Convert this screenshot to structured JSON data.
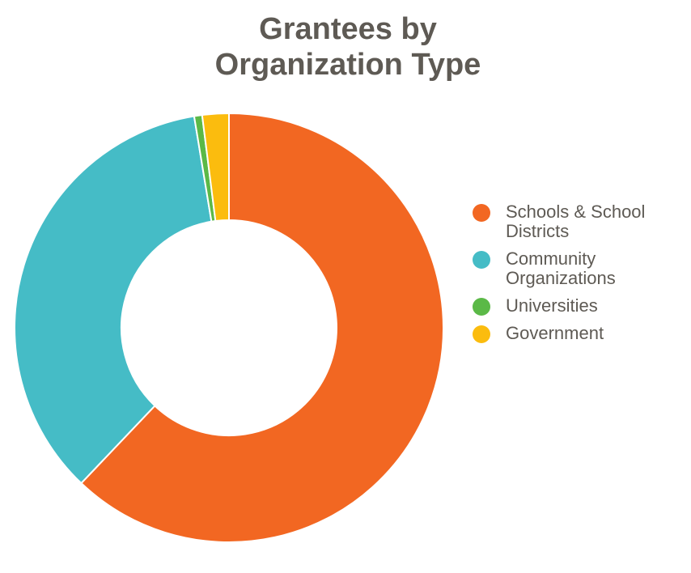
{
  "chart_data": {
    "type": "pie",
    "title_lines": [
      "Grantees by",
      "Organization Type"
    ],
    "categories": [
      "Schools & School Districts",
      "Community Organizations",
      "Universities",
      "Government"
    ],
    "legend_lines": [
      [
        "Schools & School",
        "Districts"
      ],
      [
        "Community",
        "Organizations"
      ],
      [
        "Universities"
      ],
      [
        "Government"
      ]
    ],
    "values": [
      62.1,
      35.3,
      0.6,
      2.0
    ],
    "colors": [
      "#f26722",
      "#45bcc6",
      "#5bb947",
      "#fbbc0e"
    ],
    "donut": true,
    "legend": "right"
  }
}
